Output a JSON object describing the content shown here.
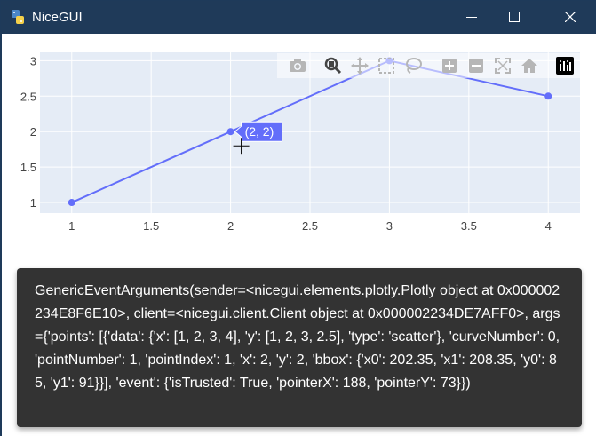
{
  "window": {
    "title": "NiceGUI"
  },
  "modebar": {
    "icons": [
      "camera-icon",
      "zoom-icon",
      "pan-icon",
      "box-select-icon",
      "lasso-select-icon",
      "zoom-in-icon",
      "zoom-out-icon",
      "autoscale-icon",
      "reset-axes-icon",
      "plotly-logo-icon"
    ]
  },
  "chart_data": {
    "type": "line",
    "x": [
      1,
      2,
      3,
      4
    ],
    "y": [
      1,
      2,
      3,
      2.5
    ],
    "xlim": [
      0.8,
      4.2
    ],
    "ylim": [
      0.85,
      3.13
    ],
    "xticks": [
      "1",
      "1.5",
      "2",
      "2.5",
      "3",
      "3.5",
      "4"
    ],
    "yticks": [
      "1",
      "1.5",
      "2",
      "2.5",
      "3"
    ],
    "grid": true,
    "line_color": "#636efa",
    "hover": {
      "point_index": 1,
      "label": "(2, 2)"
    }
  },
  "notification": {
    "text": "GenericEventArguments(sender=<nicegui.elements.plotly.Plotly object at 0x000002234E8F6E10>, client=<nicegui.client.Client object at 0x000002234DE7AFF0>, args={'points': [{'data': {'x': [1, 2, 3, 4], 'y': [1, 2, 3, 2.5], 'type': 'scatter'}, 'curveNumber': 0, 'pointNumber': 1, 'pointIndex': 1, 'x': 2, 'y': 2, 'bbox': {'x0': 202.35, 'x1': 208.35, 'y0': 85, 'y1': 91}}], 'event': {'isTrusted': True, 'pointerX': 188, 'pointerY': 73}})"
  }
}
